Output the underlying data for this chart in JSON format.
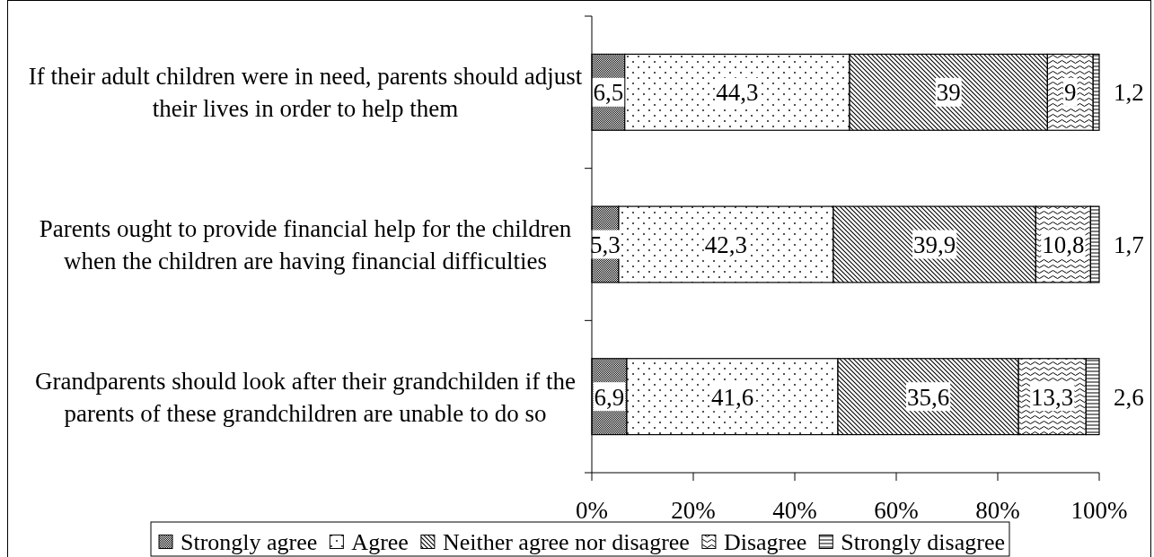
{
  "chart_data": {
    "type": "bar",
    "orientation": "horizontal",
    "stacked": true,
    "categories": [
      "If their adult children were in need, parents should adjust their lives in order to help them",
      "Parents ought to provide financial help for the children when the children are having financial difficulties",
      "Grandparents should look after their grandchilden if the parents of these grandchildren are unable to do so"
    ],
    "series": [
      {
        "name": "Strongly agree",
        "color": "#000000",
        "values": [
          6.5,
          5.3,
          6.9
        ],
        "value_labels": [
          "6,5",
          "5,3",
          "6,9"
        ]
      },
      {
        "name": "Agree",
        "color": "#000000",
        "values": [
          44.3,
          42.3,
          41.6
        ],
        "value_labels": [
          "44,3",
          "42,3",
          "41,6"
        ]
      },
      {
        "name": "Neither agree nor disagree",
        "color": "#000000",
        "values": [
          39,
          39.9,
          35.6
        ],
        "value_labels": [
          "39",
          "39,9",
          "35,6"
        ]
      },
      {
        "name": "Disagree",
        "color": "#000000",
        "values": [
          9,
          10.8,
          13.3
        ],
        "value_labels": [
          "9",
          "10,8",
          "13,3"
        ]
      },
      {
        "name": "Strongly disagree",
        "color": "#000000",
        "values": [
          1.2,
          1.7,
          2.6
        ],
        "value_labels": [
          "1,2",
          "1,7",
          "2,6"
        ]
      }
    ],
    "xlim": [
      0,
      100
    ],
    "xticks": [
      {
        "value": 0,
        "label": "0%"
      },
      {
        "value": 20,
        "label": "20%"
      },
      {
        "value": 40,
        "label": "40%"
      },
      {
        "value": 60,
        "label": "60%"
      },
      {
        "value": 80,
        "label": "80%"
      },
      {
        "value": 100,
        "label": "100%"
      }
    ],
    "legend": "bottom"
  }
}
